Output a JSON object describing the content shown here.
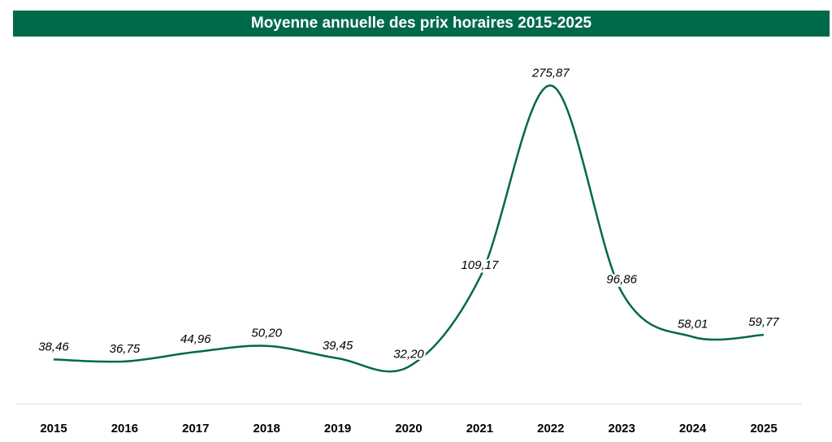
{
  "chart_data": {
    "type": "line",
    "title": "Moyenne annuelle des prix horaires 2015-2025",
    "xlabel": "",
    "ylabel": "",
    "categories": [
      "2015",
      "2016",
      "2017",
      "2018",
      "2019",
      "2020",
      "2021",
      "2022",
      "2023",
      "2024",
      "2025"
    ],
    "values": [
      38.46,
      36.75,
      44.96,
      50.2,
      39.45,
      32.2,
      109.17,
      275.87,
      96.86,
      58.01,
      59.77
    ],
    "value_labels": [
      "38,46",
      "36,75",
      "44,96",
      "50,20",
      "39,45",
      "32,20",
      "109,17",
      "275,87",
      "96,86",
      "58,01",
      "59,77"
    ],
    "ylim": [
      0,
      300
    ],
    "grid": false,
    "legend": "none",
    "smooth": true,
    "line_color": "#00694a",
    "title_bg_color": "#00694a"
  }
}
